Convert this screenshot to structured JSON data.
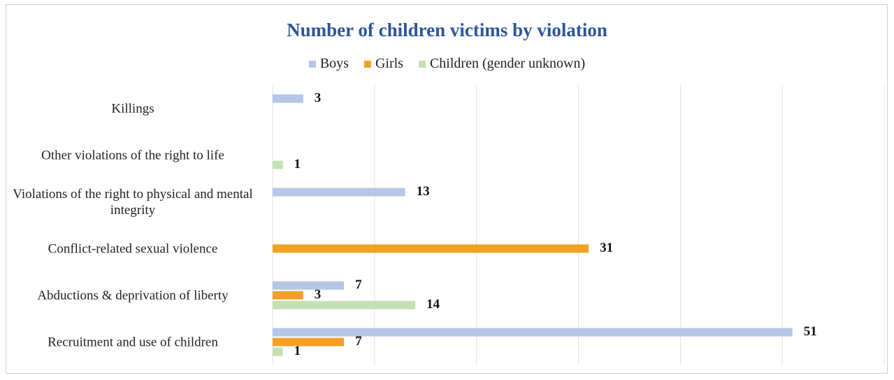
{
  "chart_data": {
    "type": "hbar",
    "title": "Number of children victims by violation",
    "categories": [
      "Killings",
      "Other violations of the right to life",
      "Violations of the right to physical and mental integrity",
      "Conflict-related sexual violence",
      "Abductions & deprivation of liberty",
      "Recruitment and use of children"
    ],
    "series": [
      {
        "name": "Boys",
        "color": "#b4c7e7",
        "values": [
          3,
          null,
          13,
          null,
          7,
          51
        ]
      },
      {
        "name": "Girls",
        "color": "#f2a025",
        "values": [
          null,
          null,
          null,
          31,
          3,
          7
        ]
      },
      {
        "name": "Children (gender unknown)",
        "color": "#c5e0b4",
        "values": [
          null,
          1,
          null,
          null,
          14,
          1
        ]
      }
    ],
    "xlim": [
      0,
      60
    ],
    "xticks": [
      0,
      10,
      20,
      30,
      40,
      50,
      60
    ],
    "grid": true,
    "legend": "top"
  }
}
